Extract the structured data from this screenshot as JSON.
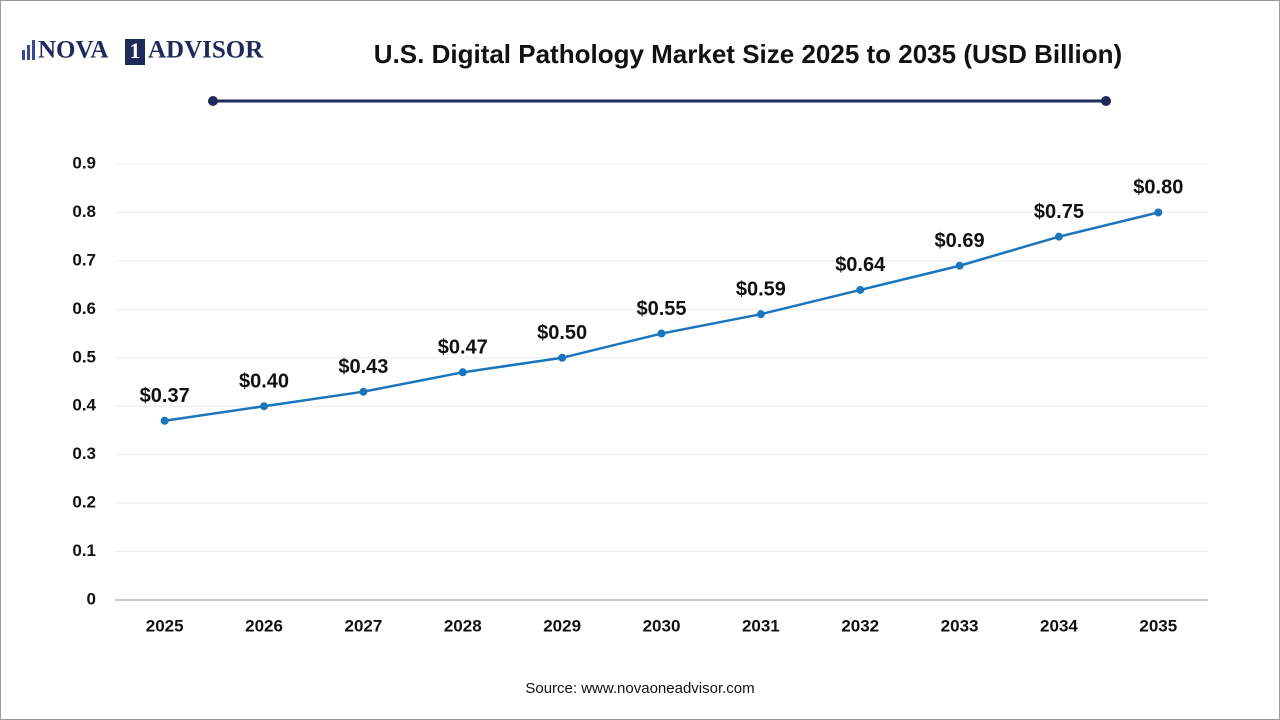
{
  "brand": [
    "NOVA",
    "1",
    "ADVISOR"
  ],
  "chart_data": {
    "type": "line",
    "title": "U.S. Digital Pathology Market Size 2025 to 2035 (USD Billion)",
    "categories": [
      "2025",
      "2026",
      "2027",
      "2028",
      "2029",
      "2030",
      "2031",
      "2032",
      "2033",
      "2034",
      "2035"
    ],
    "values": [
      0.37,
      0.4,
      0.43,
      0.47,
      0.5,
      0.55,
      0.59,
      0.64,
      0.69,
      0.75,
      0.8
    ],
    "value_labels": [
      "$0.37",
      "$0.40",
      "$0.43",
      "$0.47",
      "$0.50",
      "$0.55",
      "$0.59",
      "$0.64",
      "$0.69",
      "$0.75",
      "$0.80"
    ],
    "color": "#1b75bc",
    "ylim": [
      0,
      0.9
    ],
    "yticks": [
      0,
      0.1,
      0.2,
      0.3,
      0.4,
      0.5,
      0.6,
      0.7,
      0.8,
      0.9
    ],
    "grid": true,
    "source": "Source: www.novaoneadvisor.com"
  }
}
